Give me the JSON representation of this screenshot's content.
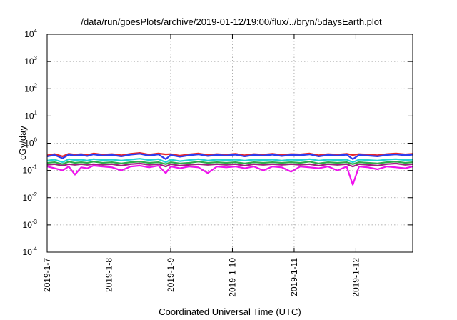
{
  "chart_data": {
    "type": "line",
    "title": "/data/run/goesPlots/archive/2019-01-12/19:00/flux/../bryn/5daysEarth.plot",
    "xlabel": "Coordinated Universal Time (UTC)",
    "ylabel": "cGy/day",
    "yscale": "log",
    "ylim": [
      0.0001,
      10000
    ],
    "xlim": [
      0,
      5.92
    ],
    "grid": true,
    "y_ticks": [
      {
        "base": "10",
        "exp": "-4",
        "value": 0.0001
      },
      {
        "base": "10",
        "exp": "-3",
        "value": 0.001
      },
      {
        "base": "10",
        "exp": "-2",
        "value": 0.01
      },
      {
        "base": "10",
        "exp": "-1",
        "value": 0.1
      },
      {
        "base": "10",
        "exp": "0",
        "value": 1
      },
      {
        "base": "10",
        "exp": "1",
        "value": 10
      },
      {
        "base": "10",
        "exp": "2",
        "value": 100
      },
      {
        "base": "10",
        "exp": "3",
        "value": 1000
      },
      {
        "base": "10",
        "exp": "4",
        "value": 10000
      }
    ],
    "x_ticks": [
      {
        "label": "2019-1-7",
        "value": 0
      },
      {
        "label": "2019-1-8",
        "value": 1
      },
      {
        "label": "2019-1-9",
        "value": 2
      },
      {
        "label": "2019-1-10",
        "value": 3
      },
      {
        "label": "2019-1-11",
        "value": 4
      },
      {
        "label": "2019-1-12",
        "value": 5
      }
    ],
    "x": [
      0.0,
      0.12,
      0.25,
      0.35,
      0.45,
      0.55,
      0.65,
      0.75,
      0.9,
      1.05,
      1.2,
      1.35,
      1.5,
      1.65,
      1.8,
      1.92,
      2.0,
      2.15,
      2.3,
      2.45,
      2.6,
      2.75,
      2.9,
      3.05,
      3.2,
      3.35,
      3.5,
      3.65,
      3.8,
      3.95,
      4.1,
      4.25,
      4.4,
      4.55,
      4.7,
      4.85,
      4.95,
      5.05,
      5.2,
      5.35,
      5.5,
      5.65,
      5.8,
      5.92
    ],
    "series": [
      {
        "color": "#e8262a",
        "values": [
          0.36,
          0.4,
          0.33,
          0.41,
          0.38,
          0.4,
          0.37,
          0.42,
          0.38,
          0.4,
          0.36,
          0.41,
          0.44,
          0.38,
          0.42,
          0.39,
          0.4,
          0.35,
          0.39,
          0.42,
          0.37,
          0.4,
          0.38,
          0.41,
          0.36,
          0.4,
          0.38,
          0.41,
          0.37,
          0.4,
          0.39,
          0.42,
          0.36,
          0.4,
          0.38,
          0.41,
          0.37,
          0.4,
          0.38,
          0.36,
          0.4,
          0.42,
          0.39,
          0.41
        ]
      },
      {
        "color": "#2b3cf0",
        "values": [
          0.33,
          0.37,
          0.28,
          0.38,
          0.35,
          0.37,
          0.34,
          0.39,
          0.35,
          0.37,
          0.33,
          0.38,
          0.41,
          0.35,
          0.39,
          0.26,
          0.37,
          0.32,
          0.36,
          0.39,
          0.34,
          0.37,
          0.35,
          0.38,
          0.33,
          0.37,
          0.35,
          0.38,
          0.34,
          0.37,
          0.36,
          0.39,
          0.33,
          0.37,
          0.35,
          0.38,
          0.26,
          0.37,
          0.35,
          0.33,
          0.37,
          0.39,
          0.36,
          0.38
        ]
      },
      {
        "color": "#22d3d6",
        "values": [
          0.23,
          0.25,
          0.2,
          0.26,
          0.24,
          0.25,
          0.23,
          0.26,
          0.24,
          0.25,
          0.23,
          0.25,
          0.27,
          0.24,
          0.26,
          0.2,
          0.25,
          0.22,
          0.24,
          0.26,
          0.23,
          0.25,
          0.24,
          0.25,
          0.23,
          0.25,
          0.24,
          0.25,
          0.23,
          0.25,
          0.24,
          0.26,
          0.23,
          0.25,
          0.24,
          0.25,
          0.2,
          0.25,
          0.24,
          0.23,
          0.25,
          0.26,
          0.24,
          0.25
        ]
      },
      {
        "color": "#2fae4a",
        "values": [
          0.19,
          0.2,
          0.17,
          0.21,
          0.19,
          0.2,
          0.19,
          0.21,
          0.19,
          0.2,
          0.18,
          0.2,
          0.21,
          0.19,
          0.2,
          0.17,
          0.2,
          0.18,
          0.19,
          0.21,
          0.19,
          0.2,
          0.19,
          0.2,
          0.18,
          0.2,
          0.19,
          0.2,
          0.19,
          0.2,
          0.19,
          0.21,
          0.18,
          0.2,
          0.19,
          0.2,
          0.17,
          0.2,
          0.19,
          0.18,
          0.2,
          0.21,
          0.19,
          0.2
        ]
      },
      {
        "color": "#a02080",
        "values": [
          0.16,
          0.17,
          0.15,
          0.17,
          0.16,
          0.17,
          0.16,
          0.17,
          0.16,
          0.17,
          0.15,
          0.17,
          0.18,
          0.16,
          0.17,
          0.14,
          0.17,
          0.15,
          0.16,
          0.17,
          0.16,
          0.17,
          0.16,
          0.17,
          0.15,
          0.17,
          0.16,
          0.17,
          0.16,
          0.17,
          0.16,
          0.17,
          0.15,
          0.17,
          0.16,
          0.17,
          0.14,
          0.17,
          0.16,
          0.15,
          0.17,
          0.18,
          0.16,
          0.17
        ]
      },
      {
        "color": "#f012ee",
        "values": [
          0.14,
          0.12,
          0.1,
          0.14,
          0.07,
          0.13,
          0.12,
          0.15,
          0.14,
          0.13,
          0.1,
          0.14,
          0.15,
          0.13,
          0.15,
          0.08,
          0.14,
          0.12,
          0.14,
          0.13,
          0.08,
          0.14,
          0.13,
          0.14,
          0.12,
          0.14,
          0.1,
          0.14,
          0.13,
          0.09,
          0.14,
          0.13,
          0.12,
          0.14,
          0.1,
          0.14,
          0.03,
          0.14,
          0.13,
          0.11,
          0.14,
          0.13,
          0.12,
          0.14
        ]
      }
    ]
  }
}
